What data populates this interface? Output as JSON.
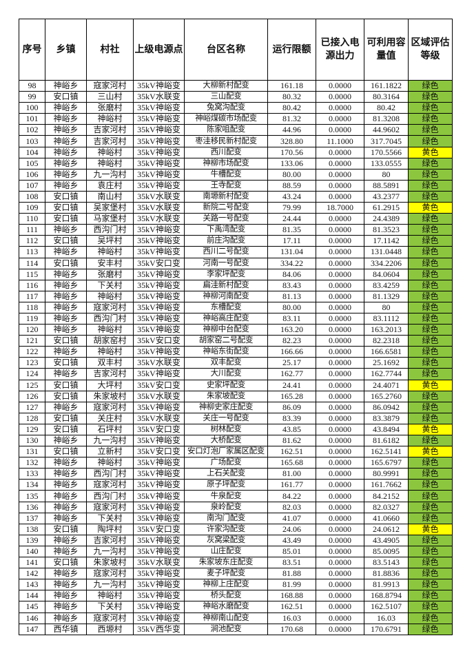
{
  "headers": [
    "序号",
    "乡镇",
    "村社",
    "上级电源点",
    "台区名称",
    "运行限额",
    "已接入电源出力",
    "可利用容量值",
    "区域评估等级"
  ],
  "grade_colors": {
    "绿色": "#8cc63f",
    "黄色": "#ffff00"
  },
  "rows": [
    [
      "98",
      "神峪乡",
      "寇家河村",
      "35kV神峪变",
      "大柳新村配变",
      "161.18",
      "0.0000",
      "161.1822",
      "绿色"
    ],
    [
      "99",
      "安口镇",
      "三山村",
      "35kV水联变",
      "三山配变",
      "80.32",
      "0.0000",
      "80.3164",
      "绿色"
    ],
    [
      "100",
      "神峪乡",
      "张磨村",
      "35kV神峪变",
      "兔窝沟配变",
      "80.42",
      "0.0000",
      "80.42",
      "绿色"
    ],
    [
      "101",
      "神峪乡",
      "神峪村",
      "35kV神峪变",
      "神峪煤碳市场配变",
      "81.32",
      "0.0000",
      "81.3208",
      "绿色"
    ],
    [
      "102",
      "神峪乡",
      "吉家河村",
      "35kV神峪变",
      "陈家咀配变",
      "44.96",
      "0.0000",
      "44.9602",
      "绿色"
    ],
    [
      "103",
      "神峪乡",
      "吉家河村",
      "35kV神峪变",
      "枣洼移民新村配变",
      "328.80",
      "11.1000",
      "317.7045",
      "绿色"
    ],
    [
      "104",
      "神峪乡",
      "神峪村",
      "35kV神峪变",
      "西川配变",
      "170.56",
      "0.0000",
      "170.5566",
      "黄色"
    ],
    [
      "105",
      "神峪乡",
      "神峪村",
      "35kV神峪变",
      "神柳市场配变",
      "133.06",
      "0.0000",
      "133.0555",
      "绿色"
    ],
    [
      "106",
      "神峪乡",
      "九一沟村",
      "35kV神峪变",
      "牛槽配变",
      "80.00",
      "0.0000",
      "80",
      "绿色"
    ],
    [
      "107",
      "神峪乡",
      "袁庄村",
      "35kV神峪变",
      "王寺配变",
      "88.59",
      "0.0000",
      "88.5891",
      "绿色"
    ],
    [
      "108",
      "安口镇",
      "南山村",
      "35kV水联变",
      "南塬新村配变",
      "43.24",
      "0.0000",
      "43.2377",
      "绿色"
    ],
    [
      "109",
      "安口镇",
      "吴家堡村",
      "35kV水联变",
      "新院二号配变",
      "79.99",
      "18.7000",
      "61.2915",
      "黄色"
    ],
    [
      "110",
      "安口镇",
      "马家堡村",
      "35kV水联变",
      "关路一号配变",
      "24.44",
      "0.0000",
      "24.4389",
      "绿色"
    ],
    [
      "111",
      "神峪乡",
      "西沟门村",
      "35kV神峪变",
      "下禹湾配变",
      "81.35",
      "0.0000",
      "81.3523",
      "绿色"
    ],
    [
      "112",
      "安口镇",
      "吴坪村",
      "35kV神峪变",
      "前庄沟配变",
      "17.11",
      "0.0000",
      "17.1142",
      "绿色"
    ],
    [
      "113",
      "神峪乡",
      "神峪村",
      "35kV神峪变",
      "西川二号配变",
      "131.04",
      "0.0000",
      "131.0448",
      "绿色"
    ],
    [
      "114",
      "安口镇",
      "安丰村",
      "35kV安口变",
      "河南一号配变",
      "334.22",
      "0.0000",
      "334.2206",
      "绿色"
    ],
    [
      "115",
      "神峪乡",
      "张磨村",
      "35kV神峪变",
      "李家坪配变",
      "84.06",
      "0.0000",
      "84.0604",
      "绿色"
    ],
    [
      "116",
      "神峪乡",
      "下关村",
      "35kV神峪变",
      "扁洼新村配变",
      "83.43",
      "0.0000",
      "83.4259",
      "绿色"
    ],
    [
      "117",
      "神峪乡",
      "神峪村",
      "35kV神峪变",
      "神柳河南配变",
      "81.13",
      "0.0000",
      "81.1329",
      "绿色"
    ],
    [
      "118",
      "神峪乡",
      "寇家河村",
      "35kV神峪变",
      "东槽配变",
      "80.00",
      "0.0000",
      "80",
      "绿色"
    ],
    [
      "119",
      "神峪乡",
      "西沟门村",
      "35kV神峪变",
      "神峪高庄配变",
      "83.11",
      "0.0000",
      "83.1112",
      "绿色"
    ],
    [
      "120",
      "神峪乡",
      "神峪村",
      "35kV神峪变",
      "神柳中台配变",
      "163.20",
      "0.0000",
      "163.2013",
      "绿色"
    ],
    [
      "121",
      "安口镇",
      "胡家窑村",
      "35kV安口变",
      "胡家窑二号配变",
      "82.23",
      "0.0000",
      "82.2318",
      "绿色"
    ],
    [
      "122",
      "神峪乡",
      "神峪村",
      "35kV神峪变",
      "神峪东街配变",
      "166.66",
      "0.0000",
      "166.6581",
      "绿色"
    ],
    [
      "123",
      "安口镇",
      "双丰村",
      "35kV水联变",
      "双丰配变",
      "25.17",
      "0.0000",
      "25.1692",
      "绿色"
    ],
    [
      "124",
      "神峪乡",
      "吉家河村",
      "35kV神峪变",
      "大川配变",
      "162.77",
      "0.0000",
      "162.7744",
      "绿色"
    ],
    [
      "125",
      "安口镇",
      "大坪村",
      "35kV安口变",
      "史家坪配变",
      "24.41",
      "0.0000",
      "24.4071",
      "黄色"
    ],
    [
      "126",
      "安口镇",
      "朱家坡村",
      "35kV水联变",
      "朱家坡配变",
      "165.28",
      "0.0000",
      "165.2760",
      "绿色"
    ],
    [
      "127",
      "神峪乡",
      "寇家河村",
      "35kV神峪变",
      "神柳史家庄配变",
      "86.09",
      "0.0000",
      "86.0942",
      "绿色"
    ],
    [
      "128",
      "安口镇",
      "关庄村",
      "35kV水联变",
      "关庄一号配变",
      "83.39",
      "0.0000",
      "83.3879",
      "绿色"
    ],
    [
      "129",
      "安口镇",
      "石坪村",
      "35kV安口变",
      "树林配变",
      "43.85",
      "0.0000",
      "43.8494",
      "黄色"
    ],
    [
      "130",
      "神峪乡",
      "九一沟村",
      "35kV神峪变",
      "大桥配变",
      "81.62",
      "0.0000",
      "81.6182",
      "绿色"
    ],
    [
      "131",
      "安口镇",
      "立新村",
      "35kV安口变",
      "安口灯泡厂家属区配变",
      "162.51",
      "0.0000",
      "162.5141",
      "黄色"
    ],
    [
      "132",
      "神峪乡",
      "神峪村",
      "35kV神峪变",
      "广场配变",
      "165.68",
      "0.0000",
      "165.6797",
      "绿色"
    ],
    [
      "133",
      "神峪乡",
      "西沟门村",
      "35kV神峪变",
      "上石关配变",
      "81.00",
      "0.0000",
      "80.9991",
      "绿色"
    ],
    [
      "134",
      "神峪乡",
      "寇家河村",
      "35kV神峪变",
      "原子坪配变",
      "161.77",
      "0.0000",
      "161.7662",
      "绿色"
    ],
    [
      "135",
      "神峪乡",
      "西沟门村",
      "35kV神峪变",
      "牛泉配变",
      "84.22",
      "0.0000",
      "84.2152",
      "绿色"
    ],
    [
      "136",
      "神峪乡",
      "寇家河村",
      "35kV神峪变",
      "泉岭配变",
      "82.03",
      "0.0000",
      "82.0327",
      "绿色"
    ],
    [
      "137",
      "神峪乡",
      "下关村",
      "35kV神峪变",
      "南沟门配变",
      "41.07",
      "0.0000",
      "41.0660",
      "绿色"
    ],
    [
      "138",
      "安口镇",
      "陶坪村",
      "35kV安口变",
      "许家沟配变",
      "24.06",
      "0.0000",
      "24.0612",
      "黄色"
    ],
    [
      "139",
      "神峪乡",
      "吉家河村",
      "35kV神峪变",
      "灰窝梁配变",
      "43.49",
      "0.0000",
      "43.4905",
      "绿色"
    ],
    [
      "140",
      "神峪乡",
      "九一沟村",
      "35kV神峪变",
      "山庄配变",
      "85.01",
      "0.0000",
      "85.0095",
      "绿色"
    ],
    [
      "141",
      "安口镇",
      "朱家坡村",
      "35kV水联变",
      "朱家坡东庄配变",
      "83.51",
      "0.0000",
      "83.5143",
      "绿色"
    ],
    [
      "142",
      "神峪乡",
      "寇家河村",
      "35kV神峪变",
      "麦子坪配变",
      "81.88",
      "0.0000",
      "81.8836",
      "绿色"
    ],
    [
      "143",
      "神峪乡",
      "九一沟村",
      "35kV神峪变",
      "神柳上庄配变",
      "81.99",
      "0.0000",
      "81.9913",
      "绿色"
    ],
    [
      "144",
      "神峪乡",
      "神峪村",
      "35kV神峪变",
      "桥头配变",
      "168.88",
      "0.0000",
      "168.8794",
      "绿色"
    ],
    [
      "145",
      "神峪乡",
      "下关村",
      "35kV神峪变",
      "神峪水磨配变",
      "162.51",
      "0.0000",
      "162.5107",
      "绿色"
    ],
    [
      "146",
      "神峪乡",
      "寇家河村",
      "35kV神峪变",
      "神柳南山配变",
      "16.03",
      "0.0000",
      "16.03",
      "绿色"
    ],
    [
      "147",
      "西华镇",
      "西塬村",
      "35kV西华变",
      "涧池配变",
      "170.68",
      "0.0000",
      "170.6791",
      "绿色"
    ]
  ]
}
